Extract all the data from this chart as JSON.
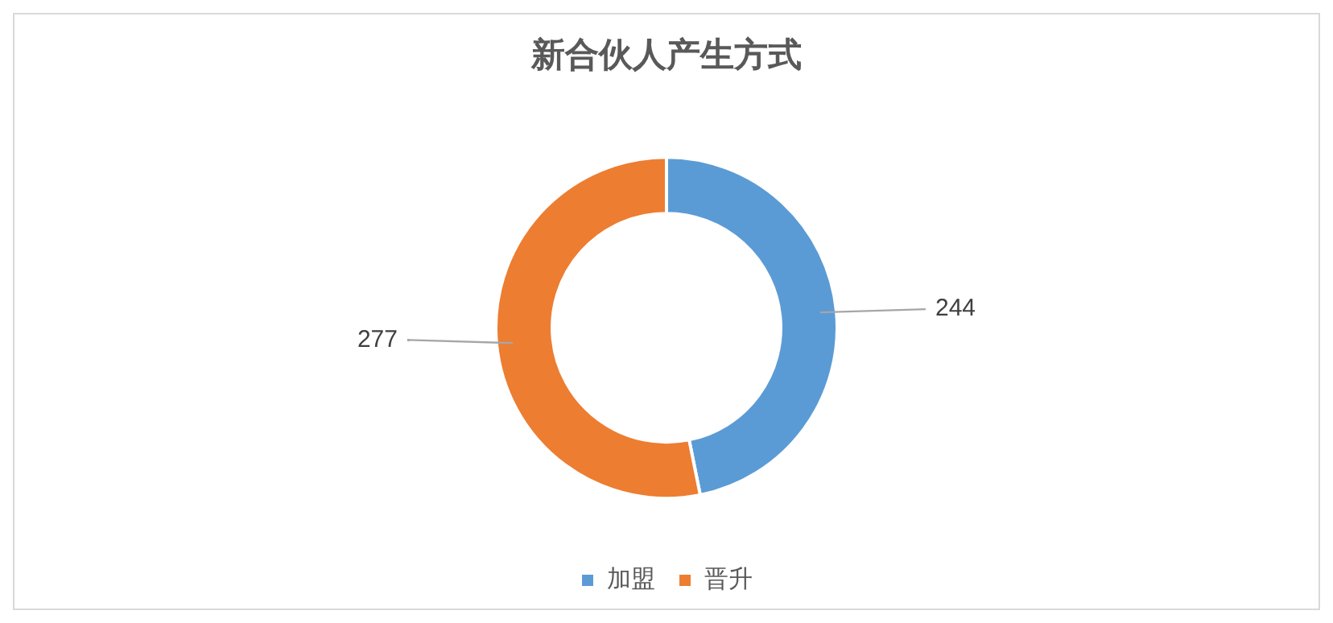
{
  "chart_data": {
    "type": "donut",
    "title": "新合伙人产生方式",
    "categories": [
      "加盟",
      "晋升"
    ],
    "values": [
      244,
      277
    ],
    "colors": [
      "#5b9bd5",
      "#ed7d31"
    ],
    "data_labels": true,
    "legend": "bottom"
  }
}
